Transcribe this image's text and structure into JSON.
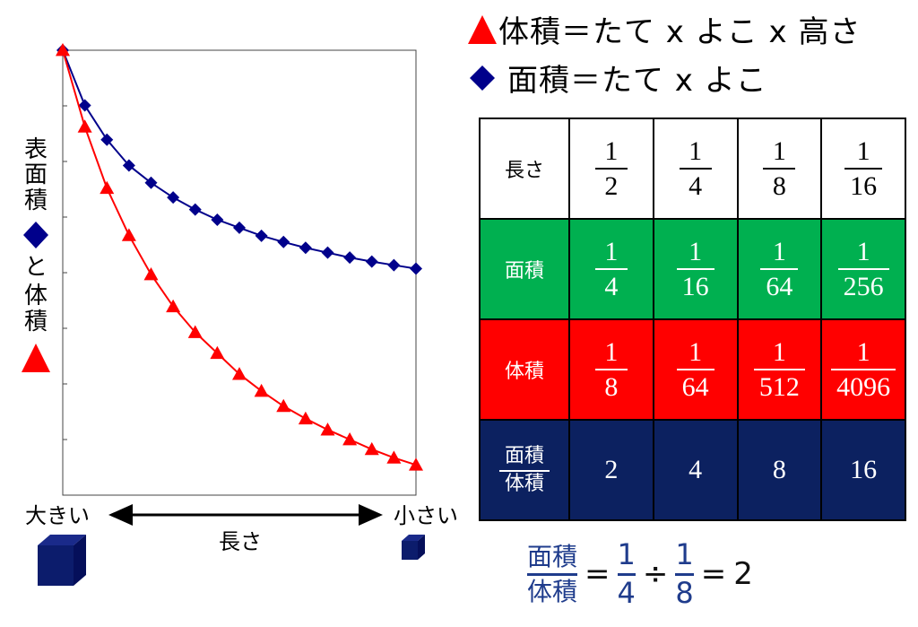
{
  "legend": {
    "volume": {
      "label": "体積＝たて x よこ x 高さ",
      "color": "#ff0000"
    },
    "area": {
      "label": "面積＝たて x よこ",
      "color": "#00008b"
    }
  },
  "chart_data": {
    "type": "line",
    "title": "",
    "ylabel": "表面積◆と体積▲",
    "xlabel": "長さ",
    "x_left_label": "大きい",
    "x_right_label": "小さい",
    "grid": false,
    "series": [
      {
        "marker": "diamond",
        "color": "#00008b",
        "values": [
          1.0,
          0.876,
          0.799,
          0.741,
          0.702,
          0.669,
          0.642,
          0.619,
          0.601,
          0.583,
          0.569,
          0.556,
          0.545,
          0.534,
          0.525,
          0.517,
          0.509
        ]
      },
      {
        "marker": "triangle",
        "color": "#ff0000",
        "values": [
          1.0,
          0.828,
          0.69,
          0.584,
          0.496,
          0.424,
          0.366,
          0.319,
          0.272,
          0.234,
          0.2,
          0.172,
          0.147,
          0.125,
          0.103,
          0.084,
          0.068
        ]
      }
    ]
  },
  "table": {
    "rows": [
      {
        "header": "長さ",
        "cells": [
          [
            "1",
            "2"
          ],
          [
            "1",
            "4"
          ],
          [
            "1",
            "8"
          ],
          [
            "1",
            "16"
          ]
        ]
      },
      {
        "header": "面積",
        "cells": [
          [
            "1",
            "4"
          ],
          [
            "1",
            "16"
          ],
          [
            "1",
            "64"
          ],
          [
            "1",
            "256"
          ]
        ]
      },
      {
        "header": "体積",
        "cells": [
          [
            "1",
            "8"
          ],
          [
            "1",
            "64"
          ],
          [
            "1",
            "512"
          ],
          [
            "1",
            "4096"
          ]
        ]
      },
      {
        "header_num": "面積",
        "header_den": "体積",
        "cells": [
          "2",
          "4",
          "8",
          "16"
        ]
      }
    ]
  },
  "formula": {
    "left_num": "面積",
    "left_den": "体積",
    "eq1": "=",
    "a_num": "1",
    "a_den": "4",
    "div": "÷",
    "b_num": "1",
    "b_den": "8",
    "eq2": "=",
    "result": "2"
  }
}
